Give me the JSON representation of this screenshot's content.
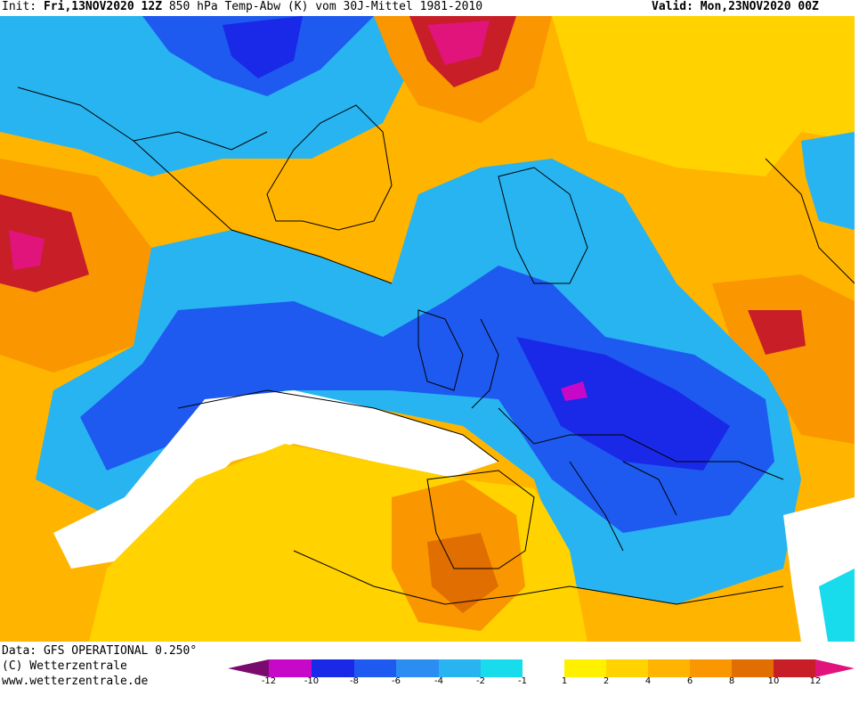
{
  "header": {
    "init_label": "Init:",
    "init_value": "Fri,13NOV2020 12Z",
    "description": "850 hPa Temp-Abw (K) vom 30J-Mittel 1981-2010",
    "valid_label": "Valid:",
    "valid_value": "Mon,23NOV2020 00Z"
  },
  "footer": {
    "data_source": "Data: GFS OPERATIONAL 0.250°",
    "copyright": "(C) Wetterzentrale",
    "url": "www.wetterzentrale.de"
  },
  "colorbar": {
    "tick_labels": [
      "-12",
      "-10",
      "-8",
      "-6",
      "-4",
      "-2",
      "-1",
      "1",
      "2",
      "4",
      "6",
      "8",
      "10",
      "12"
    ],
    "colors": {
      "m12": "#7a0a6e",
      "m10": "#c808c8",
      "m8": "#1a28e8",
      "m6": "#1e5af0",
      "m4": "#2b8cf2",
      "m2": "#28b4f0",
      "m1": "#18dcec",
      "zero": "#ffffff",
      "p1": "#fff000",
      "p2": "#ffd200",
      "p4": "#ffb400",
      "p6": "#fa9600",
      "p8": "#e06e00",
      "p10": "#c81e28",
      "p12": "#e0147a"
    }
  },
  "map": {
    "region": "North Atlantic and Europe",
    "field": "850 hPa temperature anomaly"
  }
}
